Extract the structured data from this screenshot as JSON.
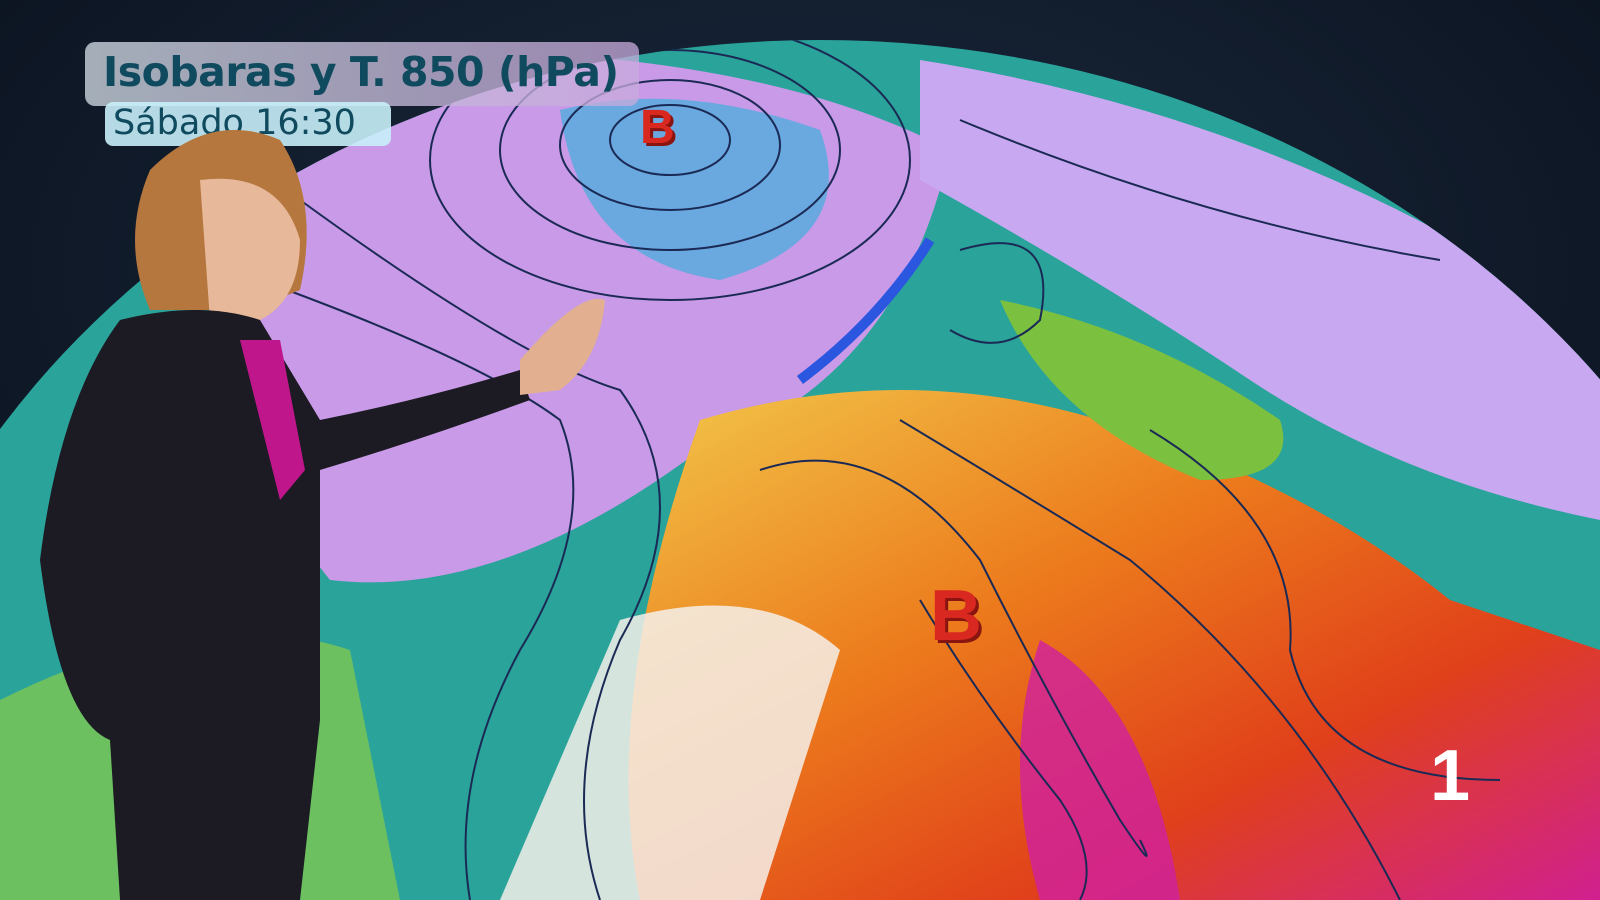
{
  "graphic": {
    "title": "Isobaras y T. 850 (hPa)",
    "subtitle": "Sábado 16:30"
  },
  "map": {
    "pressure_labels": [
      {
        "label": "B",
        "location": "north-atlantic"
      },
      {
        "label": "B",
        "location": "north-africa"
      }
    ],
    "colors": {
      "cold": "#c89ae8",
      "mild": "#2aa39a",
      "warm": "#f0a020",
      "hot": "#e0401a",
      "very_hot": "#d020a0"
    }
  },
  "channel_logo": "1"
}
